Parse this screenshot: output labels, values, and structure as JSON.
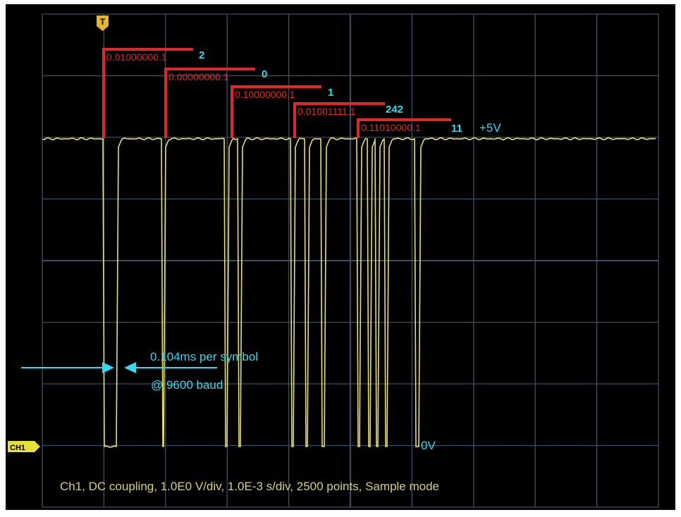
{
  "trigger_marker": {
    "label": "T"
  },
  "channel_marker": {
    "label": "CH1"
  },
  "decoded_bytes": [
    {
      "bits": "0.01000000.1",
      "value": "2"
    },
    {
      "bits": "0.00000000.1",
      "value": "0"
    },
    {
      "bits": "0.10000000.1",
      "value": "1"
    },
    {
      "bits": "0.01001111.1",
      "value": "242"
    },
    {
      "bits": "0.11010000.1",
      "value": "11"
    }
  ],
  "levels": {
    "high": "+5V",
    "low": "0V"
  },
  "symbol_annotation": {
    "line1": "0.104ms per symbol",
    "line2": "@ 9600 baud"
  },
  "status": "Ch1, DC coupling, 1.0E0 V/div, 1.0E-3 s/div, 2500 points, Sample mode",
  "colors": {
    "trace": "#e8e06a",
    "decode": "#e12727",
    "annotation": "#33d9ee",
    "grid": "#3d4e66",
    "screen": "#000000",
    "status": "#d9d27a"
  }
}
